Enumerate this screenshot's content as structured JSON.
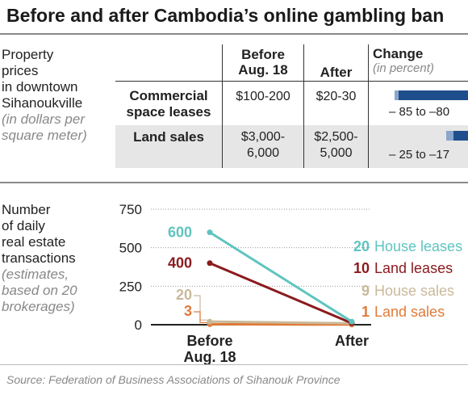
{
  "title": "Before and after Cambodia’s online gambling ban",
  "table": {
    "label_lines": [
      "Property",
      "prices",
      "in downtown",
      "Sihanoukville"
    ],
    "note_lines": [
      "(in dollars per",
      "square meter)"
    ],
    "headers": {
      "before_lines": [
        "Before",
        "Aug. 18"
      ],
      "after": "After",
      "change": "Change",
      "change_unit": "(in percent)"
    },
    "rows": [
      {
        "name_lines": [
          "Commercial",
          "space leases"
        ],
        "before_lines": [
          "$100-200"
        ],
        "after_lines": [
          "$20-30"
        ],
        "change_label": "– 85 to –80",
        "change_min": -85,
        "change_max": -80
      },
      {
        "name_lines": [
          "Land sales"
        ],
        "before_lines": [
          "$3,000-",
          "6,000"
        ],
        "after_lines": [
          "$2,500-",
          "5,000"
        ],
        "change_label": "– 25 to –17",
        "change_min": -25,
        "change_max": -17
      }
    ]
  },
  "chart_label_lines": [
    "Number",
    "of daily",
    "real estate",
    "transactions"
  ],
  "chart_note_lines": [
    "(estimates,",
    "based on 20",
    "brokerages)"
  ],
  "chart_data": {
    "type": "line",
    "categories": [
      "Before Aug. 18",
      "After"
    ],
    "category_label_lines": [
      [
        "Before",
        "Aug. 18"
      ],
      [
        "After"
      ]
    ],
    "ylim": [
      0,
      750
    ],
    "yticks": [
      0,
      250,
      500,
      750
    ],
    "series": [
      {
        "name": "House leases",
        "values": [
          600,
          20
        ],
        "color": "#5fc4bf"
      },
      {
        "name": "Land leases",
        "values": [
          400,
          10
        ],
        "color": "#8b1a1e"
      },
      {
        "name": "House sales",
        "values": [
          20,
          9
        ],
        "color": "#c9b99a"
      },
      {
        "name": "Land sales",
        "values": [
          3,
          1
        ],
        "color": "#e07b39"
      }
    ]
  },
  "bar_colors": {
    "dark": "#1f4e8c",
    "light": "#8aa6cc"
  },
  "source": "Source: Federation of Business Associations of Sihanouk Province"
}
